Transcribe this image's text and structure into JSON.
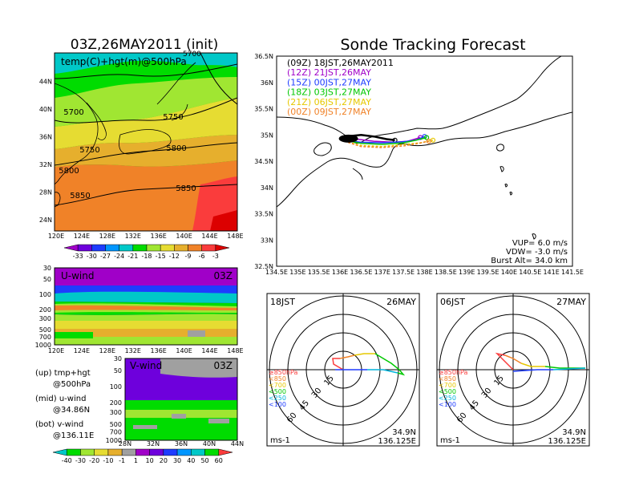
{
  "title_left": "03Z,26MAY2011 (init)",
  "title_right": "Sonde Tracking Forecast",
  "map_left": {
    "label": "temp(C)+hgt(m)@500hPa",
    "lon_ticks": [
      "120E",
      "124E",
      "128E",
      "132E",
      "136E",
      "140E",
      "144E",
      "148E"
    ],
    "lat_ticks": [
      "24N",
      "28N",
      "32N",
      "36N",
      "40N",
      "44N"
    ],
    "contour_labels": [
      "5700",
      "5750",
      "5750",
      "5800",
      "5800",
      "5850",
      "5850"
    ],
    "top_edge_label": "5700",
    "temp_colorbar": [
      "-33",
      "-30",
      "-27",
      "-24",
      "-21",
      "-18",
      "-15",
      "-12",
      "-9",
      "-6",
      "-3"
    ],
    "temp_colors": [
      "#a000c8",
      "#6e00dc",
      "#1e3cff",
      "#0096ff",
      "#00c8c8",
      "#00dc00",
      "#a0e632",
      "#e6dc32",
      "#e6af2d",
      "#f08228",
      "#fa3c3c",
      "#dc0000"
    ]
  },
  "uwind": {
    "label": "U-wind",
    "time": "03Z",
    "p_ticks": [
      "30",
      "50",
      "100",
      "200",
      "300",
      "500",
      "700",
      "1000"
    ],
    "lon_ticks": [
      "120E",
      "124E",
      "128E",
      "132E",
      "136E",
      "140E",
      "144E",
      "148E"
    ]
  },
  "vwind": {
    "label": "V-wind",
    "time": "03Z",
    "p_ticks": [
      "30",
      "50",
      "100",
      "200",
      "300",
      "500",
      "700",
      "1000"
    ],
    "lat_ticks": [
      "28N",
      "32N",
      "36N",
      "40N",
      "44N"
    ]
  },
  "legend_notes": [
    "(up) tmp+hgt",
    "@500hPa",
    "(mid) u-wind",
    "@34.86N",
    "(bot) v-wind",
    "@136.11E"
  ],
  "wind_colorbar": {
    "labels": [
      "-40",
      "-30",
      "-20",
      "-10",
      "-1",
      "1",
      "10",
      "20",
      "30",
      "40",
      "50",
      "60"
    ],
    "colors": [
      "#00c8c8",
      "#00dc00",
      "#a0e632",
      "#e6dc32",
      "#e6af2d",
      "#a0a0a0",
      "#a000c8",
      "#6e00dc",
      "#1e3cff",
      "#0096ff",
      "#00c8c8",
      "#00dc00",
      "#fa3c3c"
    ]
  },
  "track_map": {
    "lat_ticks": [
      "32.5N",
      "33N",
      "33.5N",
      "34N",
      "34.5N",
      "35N",
      "35.5N",
      "36N",
      "36.5N"
    ],
    "lon_ticks": [
      "134.5E",
      "135E",
      "135.5E",
      "136E",
      "136.5E",
      "137E",
      "137.5E",
      "138E",
      "138.5E",
      "139E",
      "139.5E",
      "140E",
      "140.5E",
      "141E",
      "141.5E"
    ],
    "legend": [
      {
        "text": "(09Z)  18JST,26MAY2011",
        "color": "#000000"
      },
      {
        "text": "(12Z)  21JST,26MAY",
        "color": "#a000c8"
      },
      {
        "text": "(15Z)  00JST,27MAY",
        "color": "#1e3cff"
      },
      {
        "text": "(18Z)  03JST,27MAY",
        "color": "#00c800"
      },
      {
        "text": "(21Z)  06JST,27MAY",
        "color": "#e6c800"
      },
      {
        "text": "(00Z)  09JST,27MAY",
        "color": "#f08228"
      }
    ],
    "vup": "VUP=  6.0  m/s",
    "vdw": "VDW=  -3.0  m/s",
    "burst": "Burst Alt=  34.0  km"
  },
  "polar_left": {
    "time": "18JST",
    "date": "26MAY",
    "lat": "34.9N",
    "lon": "136.125E",
    "unit": "ms-1",
    "rings": [
      "15",
      "30",
      "45",
      "60"
    ]
  },
  "polar_right": {
    "time": "06JST",
    "date": "27MAY",
    "lat": "34.9N",
    "lon": "136.125E",
    "unit": "ms-1",
    "rings": [
      "15",
      "30",
      "45",
      "60"
    ]
  },
  "polar_legend": [
    {
      "text": "≥850hPa",
      "color": "#fa3c3c"
    },
    {
      "text": "<850",
      "color": "#f08228"
    },
    {
      "text": "<700",
      "color": "#e6c800"
    },
    {
      "text": "<500",
      "color": "#00c800"
    },
    {
      "text": "<250",
      "color": "#00b4dc"
    },
    {
      "text": "<100",
      "color": "#1e3cff"
    }
  ],
  "chart_data": [
    {
      "type": "heatmap",
      "title": "03Z,26MAY2011 (init)",
      "subtitle": "temp(C)+hgt(m)@500hPa",
      "x_ticks": [
        "120E",
        "124E",
        "128E",
        "132E",
        "136E",
        "140E",
        "144E",
        "148E"
      ],
      "y_ticks": [
        "24N",
        "28N",
        "32N",
        "36N",
        "40N",
        "44N"
      ],
      "contours": [
        5700,
        5750,
        5800,
        5850
      ],
      "colorbar": [
        -33,
        -30,
        -27,
        -24,
        -21,
        -18,
        -15,
        -12,
        -9,
        -6,
        -3
      ]
    },
    {
      "type": "heatmap",
      "title": "U-wind",
      "y_ticks": [
        30,
        50,
        100,
        200,
        300,
        500,
        700,
        1000
      ],
      "x_ticks": [
        "120E",
        "124E",
        "128E",
        "132E",
        "136E",
        "140E",
        "144E",
        "148E"
      ]
    },
    {
      "type": "heatmap",
      "title": "V-wind",
      "y_ticks": [
        30,
        50,
        100,
        200,
        300,
        500,
        700,
        1000
      ],
      "x_ticks": [
        "28N",
        "32N",
        "36N",
        "40N",
        "44N"
      ],
      "colorbar": [
        -40,
        -30,
        -20,
        -10,
        -1,
        1,
        10,
        20,
        30,
        40,
        50,
        60
      ]
    },
    {
      "type": "line",
      "title": "Sonde Tracking Forecast",
      "xlim": [
        134.5,
        141.5
      ],
      "ylim": [
        32.5,
        36.5
      ],
      "series": [
        {
          "name": "(09Z)  18JST,26MAY2011",
          "x": [
            136.1,
            136.25,
            136.5,
            136.8,
            137.1,
            137.3
          ],
          "y": [
            34.9,
            34.98,
            35.0,
            34.97,
            34.92,
            34.9
          ]
        },
        {
          "name": "(12Z)  21JST,26MAY",
          "x": [
            136.1,
            136.4,
            136.8,
            137.3,
            137.6,
            137.9
          ],
          "y": [
            34.9,
            34.92,
            34.88,
            34.86,
            34.88,
            34.95
          ]
        },
        {
          "name": "(15Z)  00JST,27MAY",
          "x": [
            136.1,
            136.5,
            137.0,
            137.5,
            137.8,
            138.0
          ],
          "y": [
            34.9,
            34.86,
            34.85,
            34.87,
            34.9,
            34.97
          ]
        },
        {
          "name": "(18Z)  03JST,27MAY",
          "x": [
            136.1,
            136.5,
            137.0,
            137.5,
            137.8,
            138.05
          ],
          "y": [
            34.9,
            34.84,
            34.82,
            34.85,
            34.9,
            34.95
          ]
        },
        {
          "name": "(21Z)  06JST,27MAY",
          "x": [
            136.1,
            136.5,
            137.0,
            137.4,
            137.9,
            138.2
          ],
          "y": [
            34.88,
            34.8,
            34.78,
            34.81,
            34.85,
            34.9
          ]
        },
        {
          "name": "(00Z)  09JST,27MAY",
          "x": [
            136.1,
            136.5,
            137.0,
            137.5,
            137.8,
            138.1
          ],
          "y": [
            34.88,
            34.78,
            34.76,
            34.79,
            34.83,
            34.88
          ]
        }
      ]
    }
  ]
}
